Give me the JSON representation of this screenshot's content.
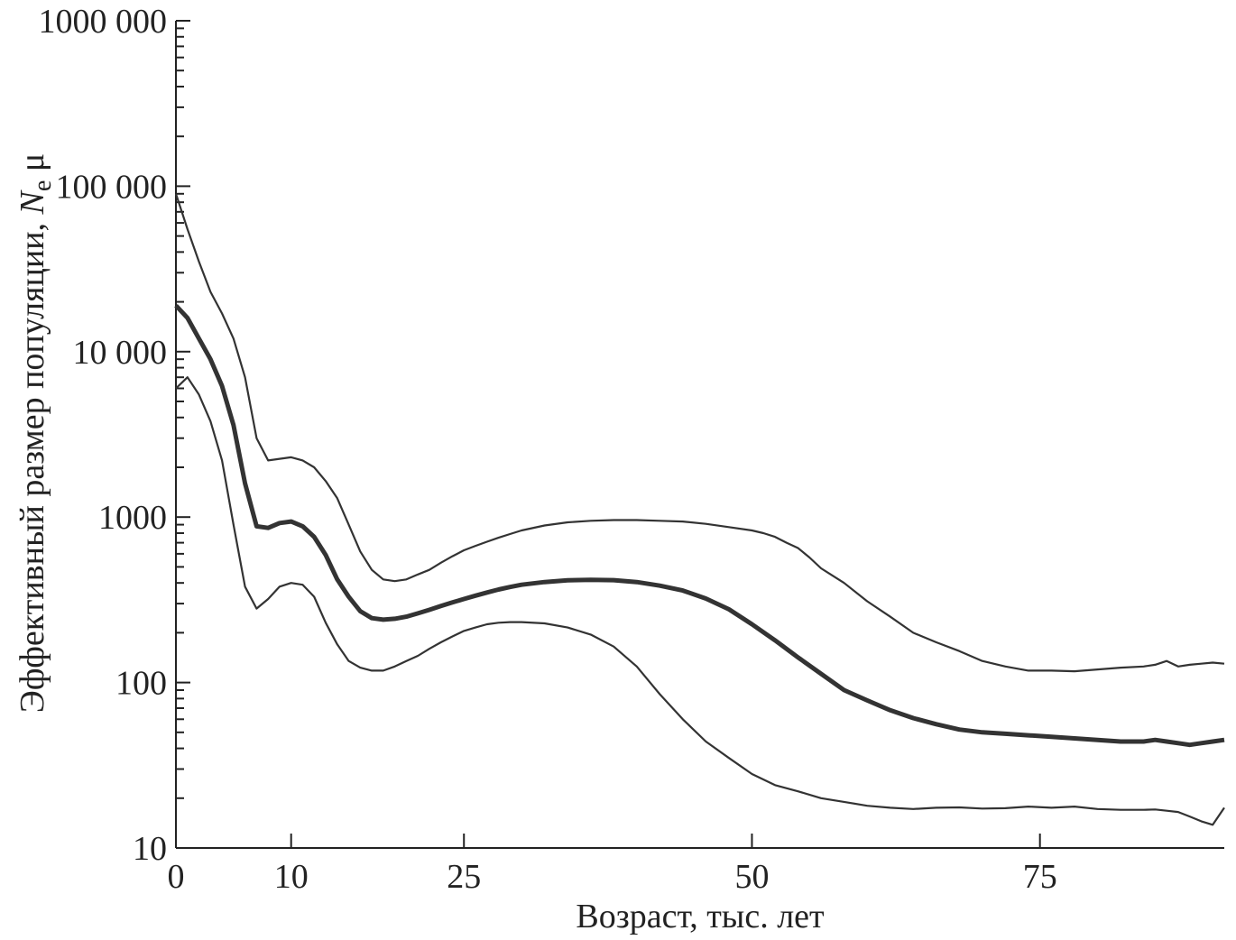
{
  "chart_data": {
    "type": "line",
    "xlabel": "Возраст, тыс. лет",
    "ylabel": {
      "prefix": "Эффективный размер популяции, ",
      "italic": "N",
      "sub": "e",
      "suffix": " μ"
    },
    "y_scale": "log",
    "xlim": [
      0,
      91
    ],
    "ylim": [
      10,
      1000000
    ],
    "x_ticks": [
      {
        "value": 0,
        "label": "0"
      },
      {
        "value": 10,
        "label": "10"
      },
      {
        "value": 25,
        "label": "25"
      },
      {
        "value": 50,
        "label": "50"
      },
      {
        "value": 75,
        "label": "75"
      }
    ],
    "y_ticks": [
      {
        "value": 10,
        "label": "10"
      },
      {
        "value": 100,
        "label": "100"
      },
      {
        "value": 1000,
        "label": "1000"
      },
      {
        "value": 10000,
        "label": "10 000"
      },
      {
        "value": 100000,
        "label": "100 000"
      },
      {
        "value": 1000000,
        "label": "1000 000"
      }
    ],
    "series": [
      {
        "role": "upper",
        "x": [
          0,
          1,
          2,
          3,
          4,
          5,
          6,
          7,
          8,
          9,
          10,
          11,
          12,
          13,
          14,
          15,
          16,
          17,
          18,
          19,
          20,
          21,
          22,
          23,
          24,
          25,
          26,
          27,
          28,
          29,
          30,
          32,
          34,
          36,
          38,
          40,
          42,
          44,
          46,
          48,
          50,
          51,
          52,
          53,
          54,
          55,
          56,
          58,
          60,
          62,
          64,
          66,
          68,
          70,
          72,
          74,
          76,
          78,
          80,
          82,
          84,
          85,
          86,
          87,
          88,
          89,
          90,
          91
        ],
        "values": [
          90000,
          55000,
          35000,
          23000,
          17000,
          12000,
          7000,
          3000,
          2200,
          2250,
          2300,
          2200,
          2000,
          1650,
          1300,
          900,
          620,
          480,
          420,
          410,
          420,
          450,
          480,
          530,
          580,
          630,
          670,
          710,
          750,
          790,
          830,
          890,
          930,
          950,
          960,
          960,
          950,
          940,
          910,
          870,
          830,
          800,
          760,
          700,
          650,
          570,
          490,
          400,
          310,
          250,
          200,
          175,
          155,
          135,
          125,
          118,
          118,
          117,
          120,
          123,
          125,
          128,
          135,
          125,
          128,
          130,
          132,
          130
        ]
      },
      {
        "role": "median",
        "x": [
          0,
          1,
          2,
          3,
          4,
          5,
          6,
          7,
          8,
          9,
          10,
          11,
          12,
          13,
          14,
          15,
          16,
          17,
          18,
          19,
          20,
          21,
          22,
          23,
          24,
          25,
          26,
          27,
          28,
          29,
          30,
          32,
          34,
          36,
          38,
          40,
          42,
          44,
          46,
          48,
          50,
          52,
          54,
          56,
          58,
          60,
          62,
          64,
          66,
          68,
          70,
          72,
          74,
          76,
          78,
          80,
          82,
          84,
          85,
          86,
          87,
          88,
          89,
          90,
          91
        ],
        "values": [
          19000,
          16000,
          12000,
          9000,
          6200,
          3600,
          1600,
          880,
          860,
          920,
          940,
          880,
          760,
          590,
          420,
          330,
          270,
          245,
          240,
          243,
          250,
          262,
          275,
          290,
          305,
          320,
          335,
          350,
          365,
          378,
          390,
          405,
          415,
          418,
          416,
          405,
          385,
          360,
          322,
          277,
          225,
          180,
          142,
          113,
          90,
          78,
          68,
          61,
          56,
          52,
          50,
          49,
          48,
          47,
          46,
          45,
          44,
          44,
          45,
          44,
          43,
          42,
          43,
          44,
          45
        ]
      },
      {
        "role": "lower",
        "x": [
          0,
          1,
          2,
          3,
          4,
          5,
          6,
          7,
          8,
          9,
          10,
          11,
          12,
          13,
          14,
          15,
          16,
          17,
          18,
          19,
          20,
          21,
          22,
          23,
          24,
          25,
          26,
          27,
          28,
          29,
          30,
          32,
          34,
          36,
          38,
          40,
          42,
          44,
          46,
          48,
          50,
          52,
          54,
          56,
          58,
          60,
          62,
          64,
          66,
          68,
          70,
          72,
          74,
          76,
          78,
          80,
          82,
          84,
          85,
          86,
          87,
          88,
          89,
          90,
          91
        ],
        "values": [
          6000,
          7000,
          5500,
          3800,
          2200,
          900,
          380,
          280,
          320,
          380,
          400,
          390,
          330,
          230,
          170,
          135,
          123,
          118,
          118,
          125,
          135,
          145,
          160,
          175,
          190,
          205,
          215,
          225,
          230,
          232,
          232,
          228,
          215,
          195,
          165,
          125,
          85,
          60,
          44,
          35,
          28,
          24,
          22,
          20,
          19,
          18,
          17.5,
          17.2,
          17.5,
          17.6,
          17.3,
          17.4,
          17.8,
          17.5,
          17.8,
          17.2,
          17,
          17,
          17.1,
          16.8,
          16.5,
          15.5,
          14.5,
          13.8,
          17.5
        ]
      }
    ]
  }
}
